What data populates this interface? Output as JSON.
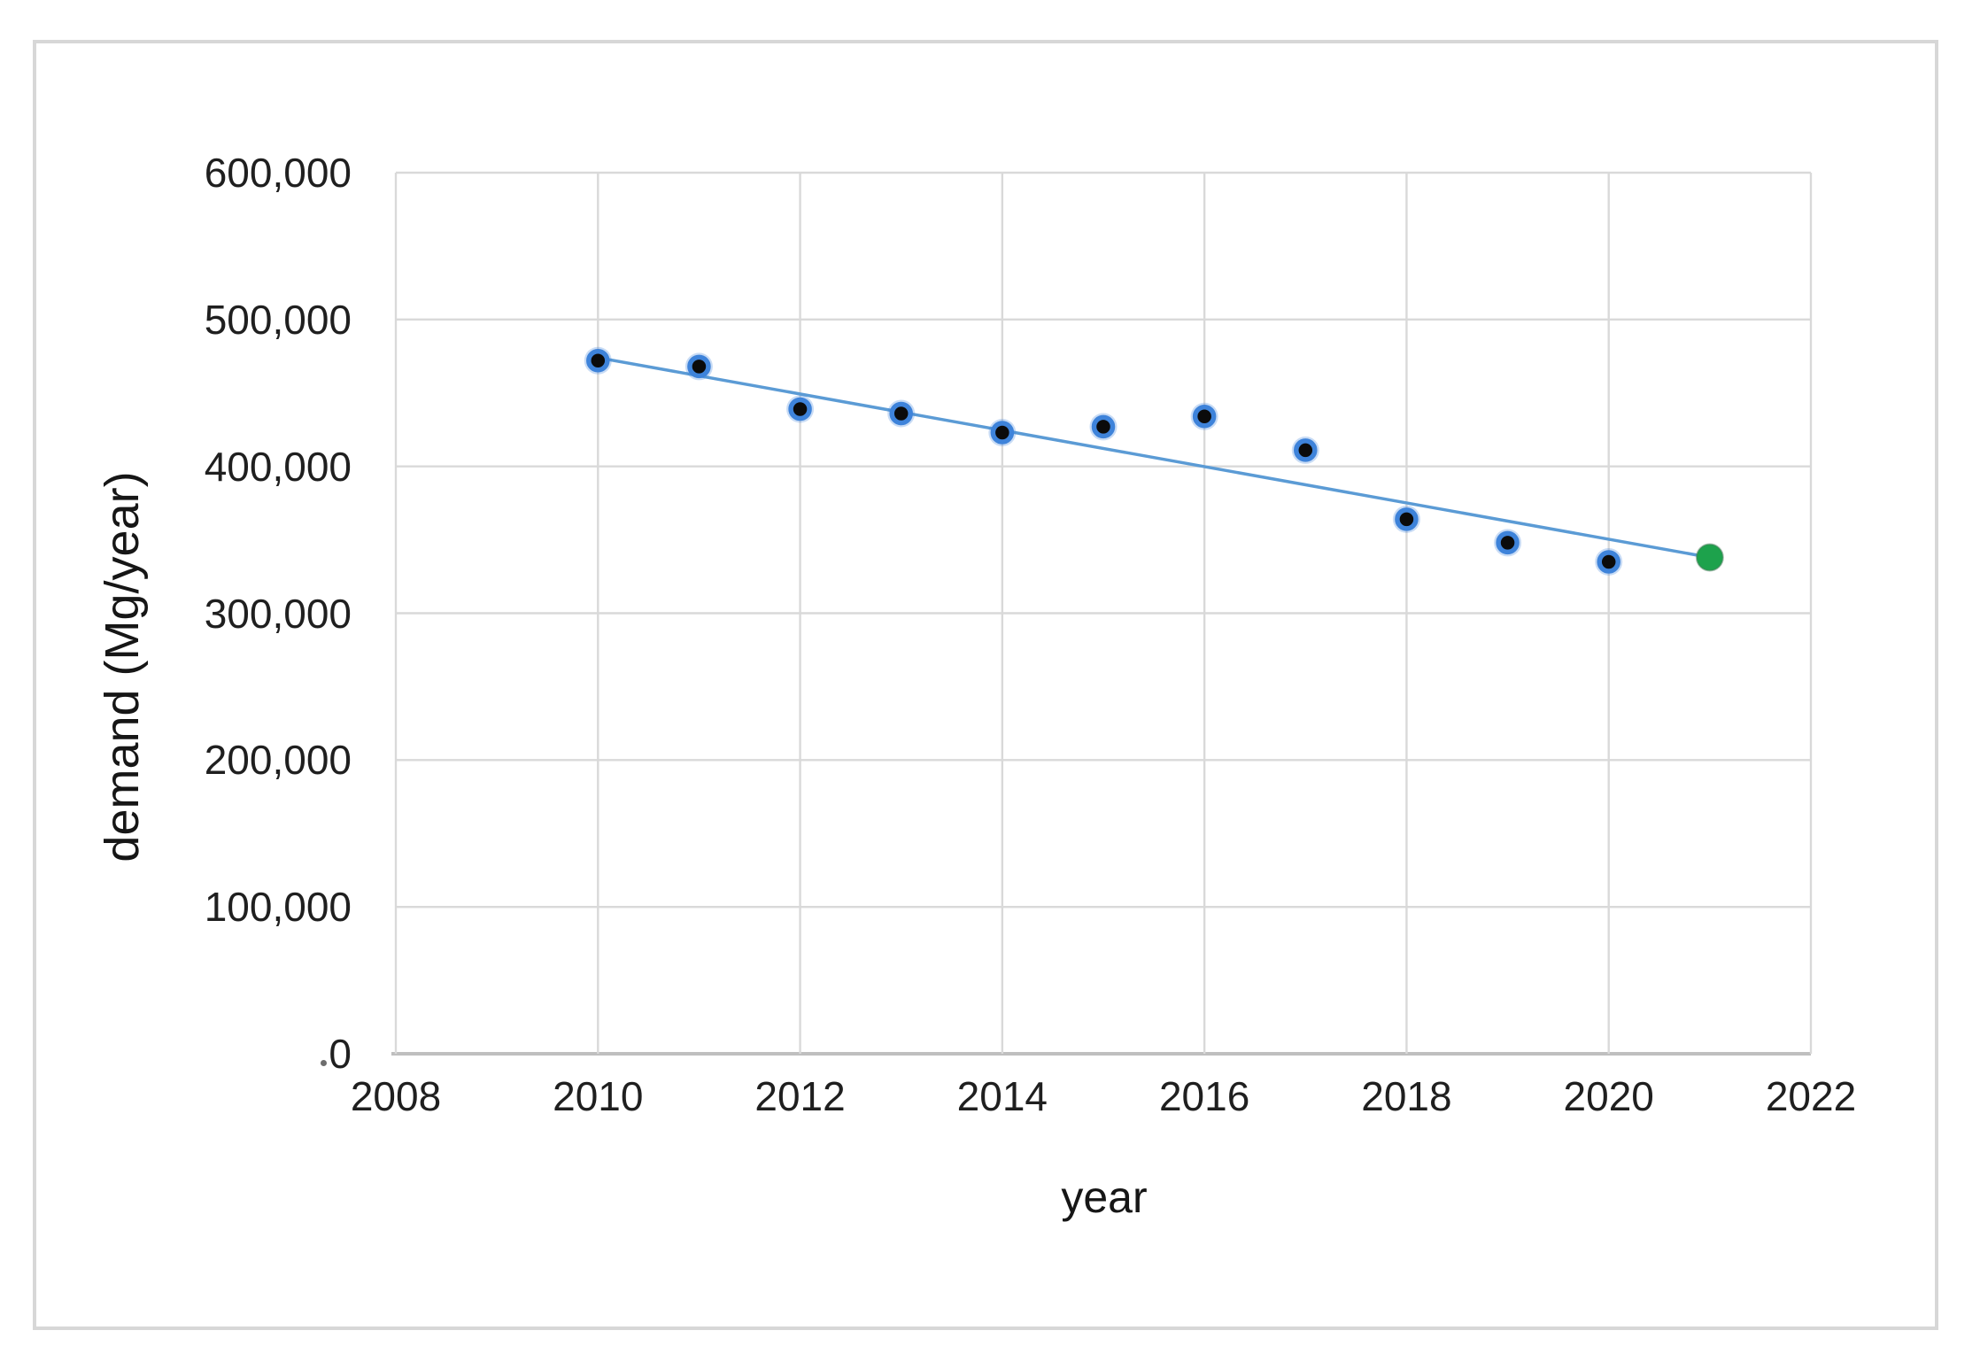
{
  "chart_data": {
    "type": "scatter",
    "title": "",
    "xlabel": "year",
    "ylabel": "demand (Mg/year)",
    "xlim": [
      2008,
      2022
    ],
    "ylim": [
      0,
      600000
    ],
    "grid": true,
    "legend": "none",
    "x_ticks": [
      {
        "label": "2008",
        "value": 2008
      },
      {
        "label": "2010",
        "value": 2010
      },
      {
        "label": "2012",
        "value": 2012
      },
      {
        "label": "2014",
        "value": 2014
      },
      {
        "label": "2016",
        "value": 2016
      },
      {
        "label": "2018",
        "value": 2018
      },
      {
        "label": "2020",
        "value": 2020
      },
      {
        "label": "2022",
        "value": 2022
      }
    ],
    "y_ticks": [
      {
        "label": "600,000",
        "value": 600000
      },
      {
        "label": "500,000",
        "value": 500000
      },
      {
        "label": "400,000",
        "value": 400000
      },
      {
        "label": "300,000",
        "value": 300000
      },
      {
        "label": "200,000",
        "value": 200000
      },
      {
        "label": "100,000",
        "value": 100000
      },
      {
        "label": "0",
        "value": 0
      }
    ],
    "zero_tick_stray_dot": true,
    "series": [
      {
        "name": "black markers",
        "type": "scatter",
        "marker": "circle",
        "marker_fill": "#0b0b0b",
        "marker_outline": "#3e83da",
        "points": [
          {
            "x": 2010,
            "y": 472000
          },
          {
            "x": 2011,
            "y": 468000
          },
          {
            "x": 2012,
            "y": 439000
          },
          {
            "x": 2013,
            "y": 436000
          },
          {
            "x": 2014,
            "y": 423000
          },
          {
            "x": 2015,
            "y": 427000
          },
          {
            "x": 2016,
            "y": 434000
          },
          {
            "x": 2017,
            "y": 411000
          },
          {
            "x": 2018,
            "y": 364000
          },
          {
            "x": 2019,
            "y": 348000
          },
          {
            "x": 2020,
            "y": 335000
          }
        ]
      },
      {
        "name": "green marker",
        "type": "scatter",
        "marker": "circle",
        "marker_fill": "#1da24c",
        "points": [
          {
            "x": 2021,
            "y": 338000
          }
        ]
      }
    ],
    "trendline": {
      "color": "#5b9bd5",
      "from": {
        "x": 2010,
        "y": 474000
      },
      "to": {
        "x": 2021,
        "y": 338000
      }
    }
  },
  "colors": {
    "background": "#ffffff",
    "figure_border": "#d7d7d7",
    "gridline": "#d9d9d9",
    "axis_line": "#bfbfbf",
    "text": "#1f1f1f",
    "trendline_blue": "#5b9bd5",
    "marker_ring_blue": "#3e83da",
    "marker_black": "#0b0b0b",
    "marker_green": "#1da24c"
  }
}
